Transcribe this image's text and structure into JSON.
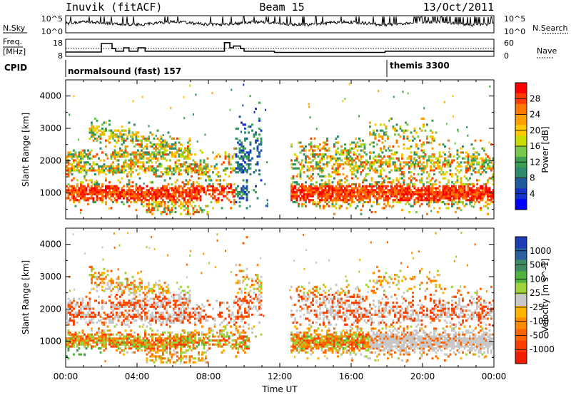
{
  "header": {
    "station": "Inuvik  (fitACF)",
    "beam": "Beam 15",
    "date": "13/Oct/2011"
  },
  "strips": {
    "nsky": {
      "label": "N.Sky",
      "left_ticks": [
        "10^5",
        "10^0"
      ],
      "right_ticks": [
        "10^5",
        "10^0"
      ],
      "right_label": "N.Search"
    },
    "freq": {
      "label_line1": "Freq.",
      "label_line2": "[MHz]",
      "left_ticks": [
        "18",
        "8"
      ],
      "right_ticks": [
        "60",
        "0"
      ],
      "right_label": "Nave",
      "steps": [
        {
          "t0": 0,
          "t1": 2.0,
          "v": 10.5
        },
        {
          "t0": 2.0,
          "t1": 2.6,
          "v": 15.5
        },
        {
          "t0": 2.6,
          "t1": 2.8,
          "v": 12.5
        },
        {
          "t0": 2.8,
          "t1": 3.25,
          "v": 11
        },
        {
          "t0": 3.25,
          "t1": 3.55,
          "v": 13
        },
        {
          "t0": 3.55,
          "t1": 4.05,
          "v": 11
        },
        {
          "t0": 4.05,
          "t1": 4.45,
          "v": 13
        },
        {
          "t0": 4.45,
          "t1": 8.9,
          "v": 11
        },
        {
          "t0": 8.9,
          "t1": 9.2,
          "v": 16
        },
        {
          "t0": 9.2,
          "t1": 9.4,
          "v": 13
        },
        {
          "t0": 9.4,
          "t1": 9.8,
          "v": 14
        },
        {
          "t0": 9.8,
          "t1": 10.0,
          "v": 12.5
        },
        {
          "t0": 10.0,
          "t1": 11.7,
          "v": 11
        },
        {
          "t0": 11.7,
          "t1": 17.9,
          "v": 10.3
        },
        {
          "t0": 17.9,
          "t1": 24,
          "v": 11
        }
      ],
      "nave_level": 28
    },
    "cpid": {
      "label": "CPID",
      "entries": [
        {
          "t": 0.05,
          "text": "normalsound (fast) 157"
        },
        {
          "t": 17.95,
          "text": "themis 3300"
        }
      ]
    }
  },
  "colorbars": {
    "power": {
      "label": "Power [dB]",
      "ticks": [
        "28",
        "24",
        "20",
        "16",
        "12",
        "8",
        "4"
      ],
      "colors": [
        "#ff0000",
        "#ff3c00",
        "#ff7800",
        "#ffa000",
        "#ffc800",
        "#c8dc00",
        "#78c84a",
        "#3ca050",
        "#2e8b6e",
        "#1e5aa0",
        "#1432c8",
        "#0000ff"
      ]
    },
    "velocity": {
      "label": "Velocity [m s^-1]",
      "ticks": [
        "1000",
        "500",
        "100",
        "25",
        "-25",
        "-100",
        "-500",
        "-1000"
      ],
      "colors": [
        "#1e3cb4",
        "#2860a0",
        "#3c8c64",
        "#50b43c",
        "#a0d23c",
        "#c8c8c8",
        "#ffb400",
        "#ff8c00",
        "#ff6400",
        "#ff3c00",
        "#f01e00"
      ]
    }
  },
  "chart_data": [
    {
      "type": "heatmap",
      "name": "power",
      "ylabel": "Slant Range [km]",
      "xlim": [
        0,
        24
      ],
      "ylim": [
        200,
        4500
      ],
      "yticks": [
        "4000",
        "3000",
        "2000",
        "1000"
      ],
      "colorbar_label": "Power [dB]",
      "colorbar_ticks": [
        28,
        24,
        20,
        16,
        12,
        8,
        4
      ]
    },
    {
      "type": "heatmap",
      "name": "velocity",
      "ylabel": "Slant Range [km]",
      "xlabel": "Time UT",
      "xlim": [
        0,
        24
      ],
      "ylim": [
        200,
        4500
      ],
      "xticks": [
        "00:00",
        "04:00",
        "08:00",
        "12:00",
        "16:00",
        "20:00",
        "00:00"
      ],
      "yticks": [
        "4000",
        "3000",
        "2000",
        "1000"
      ],
      "colorbar_label": "Velocity [m s^-1]",
      "colorbar_ticks": [
        1000,
        500,
        100,
        25,
        -25,
        -100,
        -500,
        -1000
      ]
    }
  ]
}
